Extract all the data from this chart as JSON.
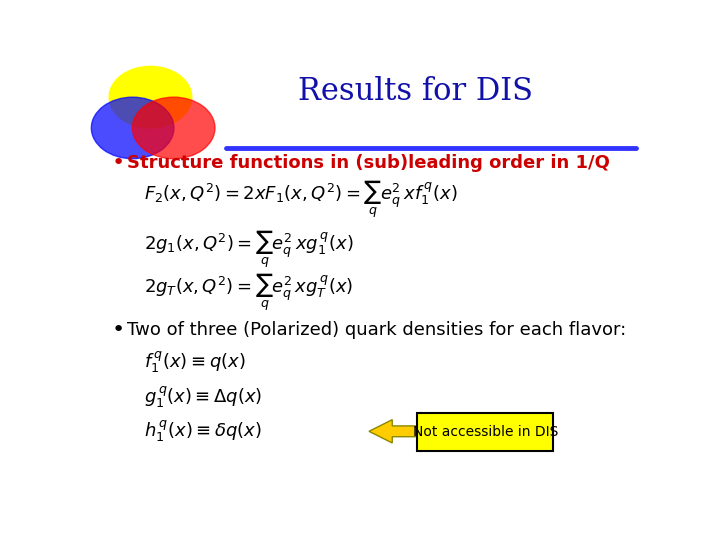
{
  "title": "Results for DIS",
  "title_color": "#1111AA",
  "title_fontsize": 22,
  "background_color": "#FFFFFF",
  "line_color": "#3333FF",
  "bullet1": "Structure functions in (sub)leading order in 1/Q",
  "bullet1_color": "#CC0000",
  "bullet2": "Two of three (Polarized) quark densities for each flavor:",
  "bullet2_color": "#000000",
  "eq1": "$F_2(x,Q^2) = 2xF_1(x,Q^2) = \\sum_q e_q^2\\, xf_1^{\\,q}(x)$",
  "eq2": "$2g_1(x,Q^2) = \\sum_q e_q^2\\, xg_1^{\\,q}(x)$",
  "eq3": "$2g_{\\mathit{T}}(x,Q^2) = \\sum_q e_q^2\\, xg_{\\mathit{T}}^{\\,q}(x)$",
  "eq4": "$f_1^{\\,q}(x) \\equiv q(x)$",
  "eq5": "$g_1^{\\,q}(x) \\equiv \\Delta q(x)$",
  "eq6": "$h_1^{\\,q}(x) \\equiv \\delta q(x)$",
  "arrow_label": "Not accessible in DIS",
  "arrow_label_bg": "#FFFF00",
  "arrow_color": "#FFCC00",
  "arrow_edge_color": "#888800",
  "eq_color": "#000000",
  "eq_fontsize": 13,
  "bullet_fontsize": 13
}
